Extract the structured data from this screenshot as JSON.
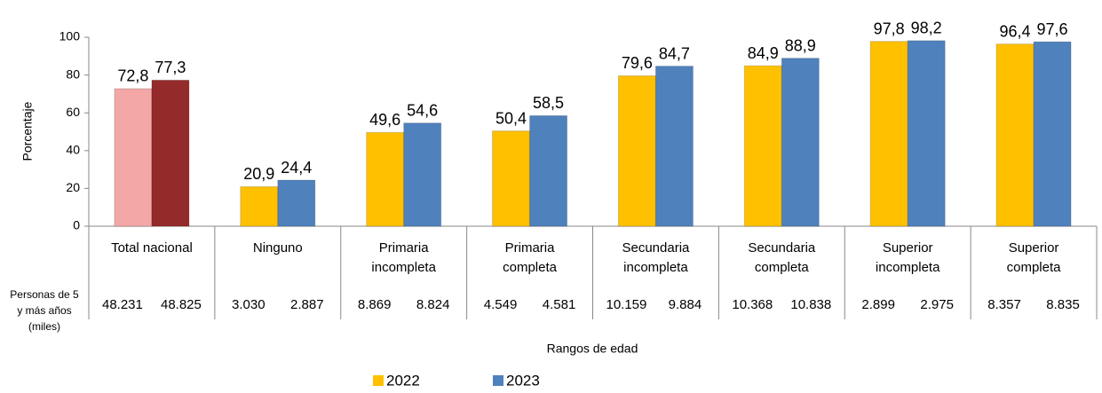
{
  "chart_data": {
    "type": "bar",
    "y_label": "Porcentaje",
    "x_label": "Rangos de edad",
    "categories": [
      [
        "Total nacional"
      ],
      [
        "Ninguno"
      ],
      [
        "Primaria",
        "incompleta"
      ],
      [
        "Primaria",
        "completa"
      ],
      [
        "Secundaria",
        "incompleta"
      ],
      [
        "Secundaria",
        "completa"
      ],
      [
        "Superior",
        "incompleta"
      ],
      [
        "Superior",
        "completa"
      ]
    ],
    "series": [
      {
        "name": "2022",
        "color": "#ffc000",
        "colors": [
          "#f4a7a7",
          "#ffc000",
          "#ffc000",
          "#ffc000",
          "#ffc000",
          "#ffc000",
          "#ffc000",
          "#ffc000"
        ],
        "values": [
          72.8,
          20.9,
          49.6,
          50.4,
          79.6,
          84.9,
          97.8,
          96.4
        ],
        "value_labels": [
          "72,8",
          "20,9",
          "49,6",
          "50,4",
          "79,6",
          "84,9",
          "97,8",
          "96,4"
        ]
      },
      {
        "name": "2023",
        "color": "#4f81bd",
        "colors": [
          "#952a2a",
          "#4f81bd",
          "#4f81bd",
          "#4f81bd",
          "#4f81bd",
          "#4f81bd",
          "#4f81bd",
          "#4f81bd"
        ],
        "values": [
          77.3,
          24.4,
          54.6,
          58.5,
          84.7,
          88.9,
          98.2,
          97.6
        ],
        "value_labels": [
          "77,3",
          "24,4",
          "54,6",
          "58,5",
          "84,7",
          "88,9",
          "98,2",
          "97,6"
        ]
      }
    ],
    "table": {
      "label": [
        "Personas de 5",
        "y más años",
        "(miles)"
      ],
      "rows": [
        {
          "values": [
            48231,
            3030,
            8869,
            4549,
            10159,
            10368,
            2899,
            8357
          ],
          "value_labels": [
            "48.231",
            "3.030",
            "8.869",
            "4.549",
            "10.159",
            "10.368",
            "2.899",
            "8.357"
          ]
        },
        {
          "values": [
            48825,
            2887,
            8824,
            4581,
            9884,
            10838,
            2975,
            8835
          ],
          "value_labels": [
            "48.825",
            "2.887",
            "8.824",
            "4.581",
            "9.884",
            "10.838",
            "2.975",
            "8.835"
          ]
        }
      ]
    },
    "ylim": [
      0,
      100
    ],
    "yticks": [
      0,
      20,
      40,
      60,
      80,
      100
    ],
    "grid": false,
    "legend": "bottom"
  }
}
